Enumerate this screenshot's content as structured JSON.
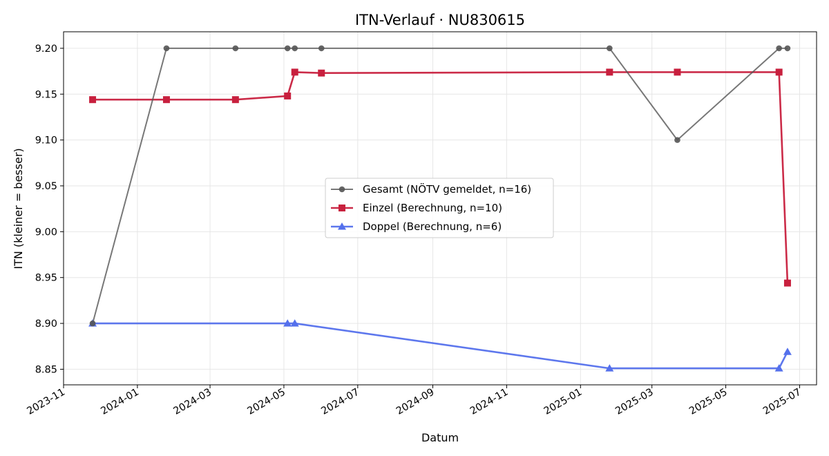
{
  "chart_data": {
    "type": "line",
    "title": "ITN-Verlauf · NU830615",
    "xlabel": "Datum",
    "ylabel": "ITN  (kleiner = besser)",
    "xlim": [
      "2023-11-01",
      "2025-07-15"
    ],
    "ylim": [
      8.833,
      9.218
    ],
    "x_ticks": [
      "2023-11",
      "2024-01",
      "2024-03",
      "2024-05",
      "2024-07",
      "2024-09",
      "2024-11",
      "2025-01",
      "2025-03",
      "2025-05",
      "2025-07"
    ],
    "y_ticks": [
      "8.85",
      "8.90",
      "8.95",
      "9.00",
      "9.05",
      "9.10",
      "9.15",
      "9.20"
    ],
    "grid": true,
    "legend_position": "center",
    "series": [
      {
        "name": "Gesamt (NÖTV gemeldet, n=16)",
        "color": "#555555",
        "marker": "circle",
        "points": [
          {
            "x": "2023-11-25",
            "y": 8.9
          },
          {
            "x": "2024-01-25",
            "y": 9.2
          },
          {
            "x": "2024-03-22",
            "y": 9.2
          },
          {
            "x": "2024-05-04",
            "y": 9.2
          },
          {
            "x": "2024-05-10",
            "y": 9.2
          },
          {
            "x": "2024-06-01",
            "y": 9.2
          },
          {
            "x": "2025-01-25",
            "y": 9.2
          },
          {
            "x": "2025-03-22",
            "y": 9.1
          },
          {
            "x": "2025-06-14",
            "y": 9.2
          },
          {
            "x": "2025-06-21",
            "y": 9.2
          }
        ]
      },
      {
        "name": "Einzel (Berechnung, n=10)",
        "color": "#c8203e",
        "marker": "square",
        "points": [
          {
            "x": "2023-11-25",
            "y": 9.144
          },
          {
            "x": "2024-01-25",
            "y": 9.144
          },
          {
            "x": "2024-03-22",
            "y": 9.144
          },
          {
            "x": "2024-05-04",
            "y": 9.148
          },
          {
            "x": "2024-05-10",
            "y": 9.174
          },
          {
            "x": "2024-06-01",
            "y": 9.173
          },
          {
            "x": "2025-01-25",
            "y": 9.174
          },
          {
            "x": "2025-03-22",
            "y": 9.174
          },
          {
            "x": "2025-06-14",
            "y": 9.174
          },
          {
            "x": "2025-06-21",
            "y": 8.944
          }
        ]
      },
      {
        "name": "Doppel (Berechnung, n=6)",
        "color": "#5470ec",
        "marker": "triangle",
        "points": [
          {
            "x": "2023-11-25",
            "y": 8.9
          },
          {
            "x": "2024-05-04",
            "y": 8.9
          },
          {
            "x": "2024-05-10",
            "y": 8.9
          },
          {
            "x": "2025-01-25",
            "y": 8.851
          },
          {
            "x": "2025-06-14",
            "y": 8.851
          },
          {
            "x": "2025-06-21",
            "y": 8.869
          }
        ]
      }
    ]
  }
}
